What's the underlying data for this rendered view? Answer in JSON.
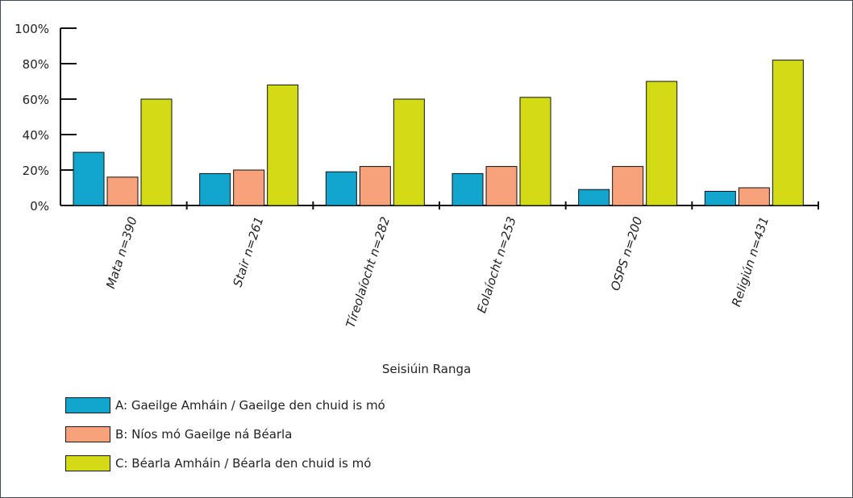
{
  "chart_data": {
    "type": "bar",
    "categories": [
      "Mata n=390",
      "Stair n=261",
      "Tíreolaíocht n=282",
      "Eolaíocht n=253",
      "OSPS n=200",
      "Religiún n=431"
    ],
    "series": [
      {
        "name": "A: Gaeilge Amháin / Gaeilge den chuid is mó",
        "color": "#12a6cf",
        "values": [
          30,
          18,
          19,
          18,
          9,
          8
        ]
      },
      {
        "name": "B: Níos mó Gaeilge ná Béarla",
        "color": "#f7a27a",
        "values": [
          16,
          20,
          22,
          22,
          22,
          10
        ]
      },
      {
        "name": "C: Béarla Amháin / Béarla den chuid is mó",
        "color": "#d2db14",
        "values": [
          60,
          68,
          60,
          61,
          70,
          82
        ]
      }
    ],
    "xlabel": "Seisiúin Ranga",
    "ylabel": "",
    "title": "",
    "yticks": [
      "0%",
      "20%",
      "40%",
      "60%",
      "80%",
      "100%"
    ],
    "ylim": [
      0,
      100
    ],
    "grid": false,
    "legend_position": "bottom-left"
  }
}
